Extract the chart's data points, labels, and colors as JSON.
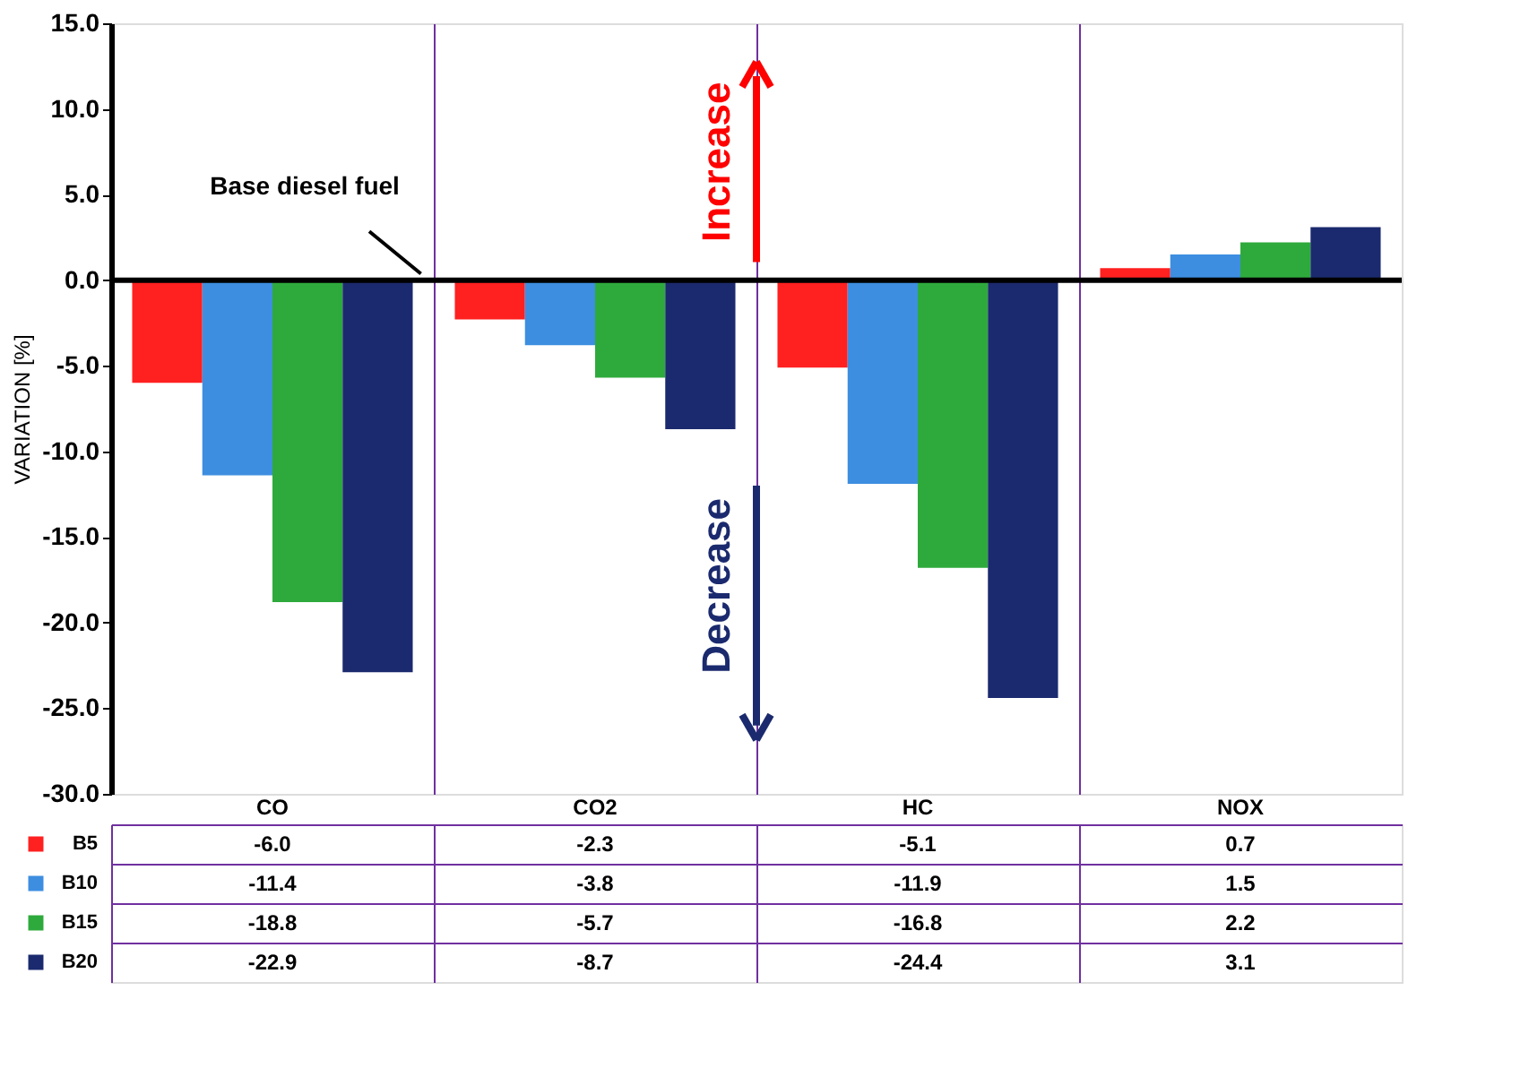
{
  "chart_data": {
    "type": "bar",
    "ylabel": "VARIATION [%]",
    "categories": [
      "CO",
      "CO2",
      "HC",
      "NOX"
    ],
    "series": [
      {
        "name": "B5",
        "color": "#ff2020",
        "values": [
          -6.0,
          -2.3,
          -5.1,
          0.7
        ],
        "value_labels": [
          "-6.0",
          "-2.3",
          "-5.1",
          "0.7"
        ]
      },
      {
        "name": "B10",
        "color": "#3d8ee0",
        "values": [
          -11.4,
          -3.8,
          -11.9,
          1.5
        ],
        "value_labels": [
          "-11.4",
          "-3.8",
          "-11.9",
          "1.5"
        ]
      },
      {
        "name": "B15",
        "color": "#2eaa3c",
        "values": [
          -18.8,
          -5.7,
          -16.8,
          2.2
        ],
        "value_labels": [
          "-18.8",
          "-5.7",
          "-16.8",
          "2.2"
        ]
      },
      {
        "name": "B20",
        "color": "#1b2a6e",
        "values": [
          -22.9,
          -8.7,
          -24.4,
          3.1
        ],
        "value_labels": [
          "-22.9",
          "-8.7",
          "-24.4",
          "3.1"
        ]
      }
    ],
    "ylim": [
      -30,
      15
    ],
    "yticks": [
      {
        "value": 15,
        "label": "15.0"
      },
      {
        "value": 10,
        "label": "10.0"
      },
      {
        "value": 5,
        "label": "5.0"
      },
      {
        "value": 0,
        "label": "0.0"
      },
      {
        "value": -5,
        "label": "-5.0"
      },
      {
        "value": -10,
        "label": "-10.0"
      },
      {
        "value": -15,
        "label": "-15.0"
      },
      {
        "value": -20,
        "label": "-20.0"
      },
      {
        "value": -25,
        "label": "-25.0"
      },
      {
        "value": -30,
        "label": "-30.0"
      }
    ],
    "ref_lines": [
      {
        "axis": "y",
        "value": 0,
        "label": "Base diesel fuel",
        "color": "#000000"
      }
    ],
    "annotations": [
      "Increase",
      "Decrease"
    ],
    "grid": "x",
    "legend": "bottom left"
  }
}
